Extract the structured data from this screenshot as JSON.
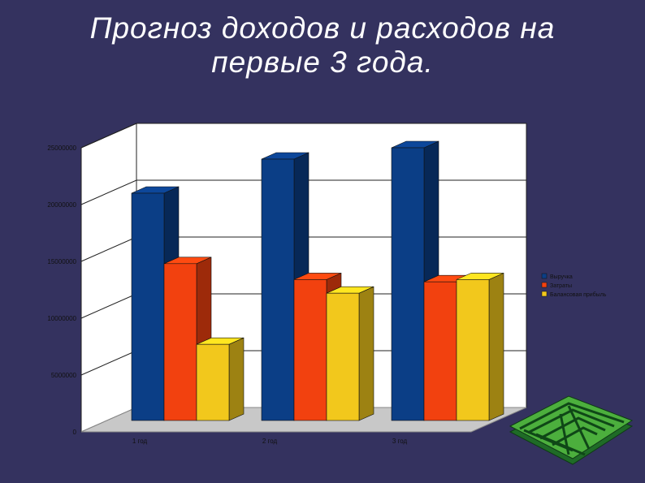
{
  "slide": {
    "title_line1": "Прогноз доходов и расходов на",
    "title_line2": "первые 3 года."
  },
  "chart_data": {
    "type": "bar",
    "title": "Прогноз доходов и расходов на первые 3 года.",
    "categories": [
      "1 год",
      "2 год",
      "3 год"
    ],
    "series": [
      {
        "name": "Выручка",
        "values": [
          20000000,
          23000000,
          24000000
        ],
        "color": "#0b3e86"
      },
      {
        "name": "Затраты",
        "values": [
          13800000,
          12400000,
          12200000
        ],
        "color": "#f2410f"
      },
      {
        "name": "Балансовая прибыль",
        "values": [
          6700000,
          11200000,
          12400000
        ],
        "color": "#f2c81c"
      }
    ],
    "ylim": [
      0,
      25000000
    ],
    "yticks": [
      "0",
      "5000000",
      "10000000",
      "15000000",
      "20000000",
      "25000000"
    ],
    "grid": true,
    "legend": "right",
    "three_d": true
  },
  "decoration": {
    "icon": "green-maze-icon"
  }
}
